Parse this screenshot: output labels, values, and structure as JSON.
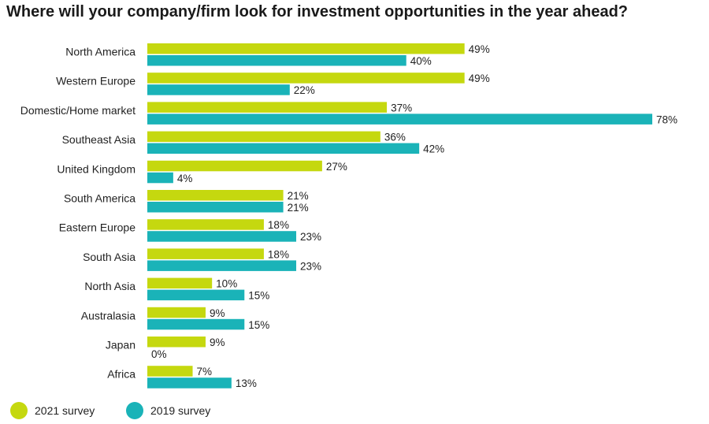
{
  "chart_data": {
    "type": "bar",
    "orientation": "horizontal",
    "title": "Where will your company/firm look for investment opportunities in the year ahead?",
    "categories": [
      "North America",
      "Western Europe",
      "Domestic/Home market",
      "Southeast Asia",
      "United Kingdom",
      "South America",
      "Eastern Europe",
      "South Asia",
      "North Asia",
      "Australasia",
      "Japan",
      "Africa"
    ],
    "series": [
      {
        "name": "2021 survey",
        "color": "#c5d80f",
        "values": [
          49,
          49,
          37,
          36,
          27,
          21,
          18,
          18,
          10,
          9,
          9,
          7
        ],
        "labels": [
          "49%",
          "49%",
          "37%",
          "36%",
          "27%",
          "21%",
          "18%",
          "18%",
          "10%",
          "9%",
          "9%",
          "7%"
        ]
      },
      {
        "name": "2019 survey",
        "color": "#1ab3b8",
        "values": [
          40,
          22,
          78,
          42,
          4,
          21,
          23,
          23,
          15,
          15,
          0,
          13
        ],
        "labels": [
          "40%",
          "22%",
          "78%",
          "42%",
          "4%",
          "21%",
          "23%",
          "23%",
          "15%",
          "15%",
          "0%",
          "13%"
        ]
      }
    ],
    "xlim": [
      0,
      78
    ],
    "grid": false,
    "legend": "bottom-left"
  }
}
